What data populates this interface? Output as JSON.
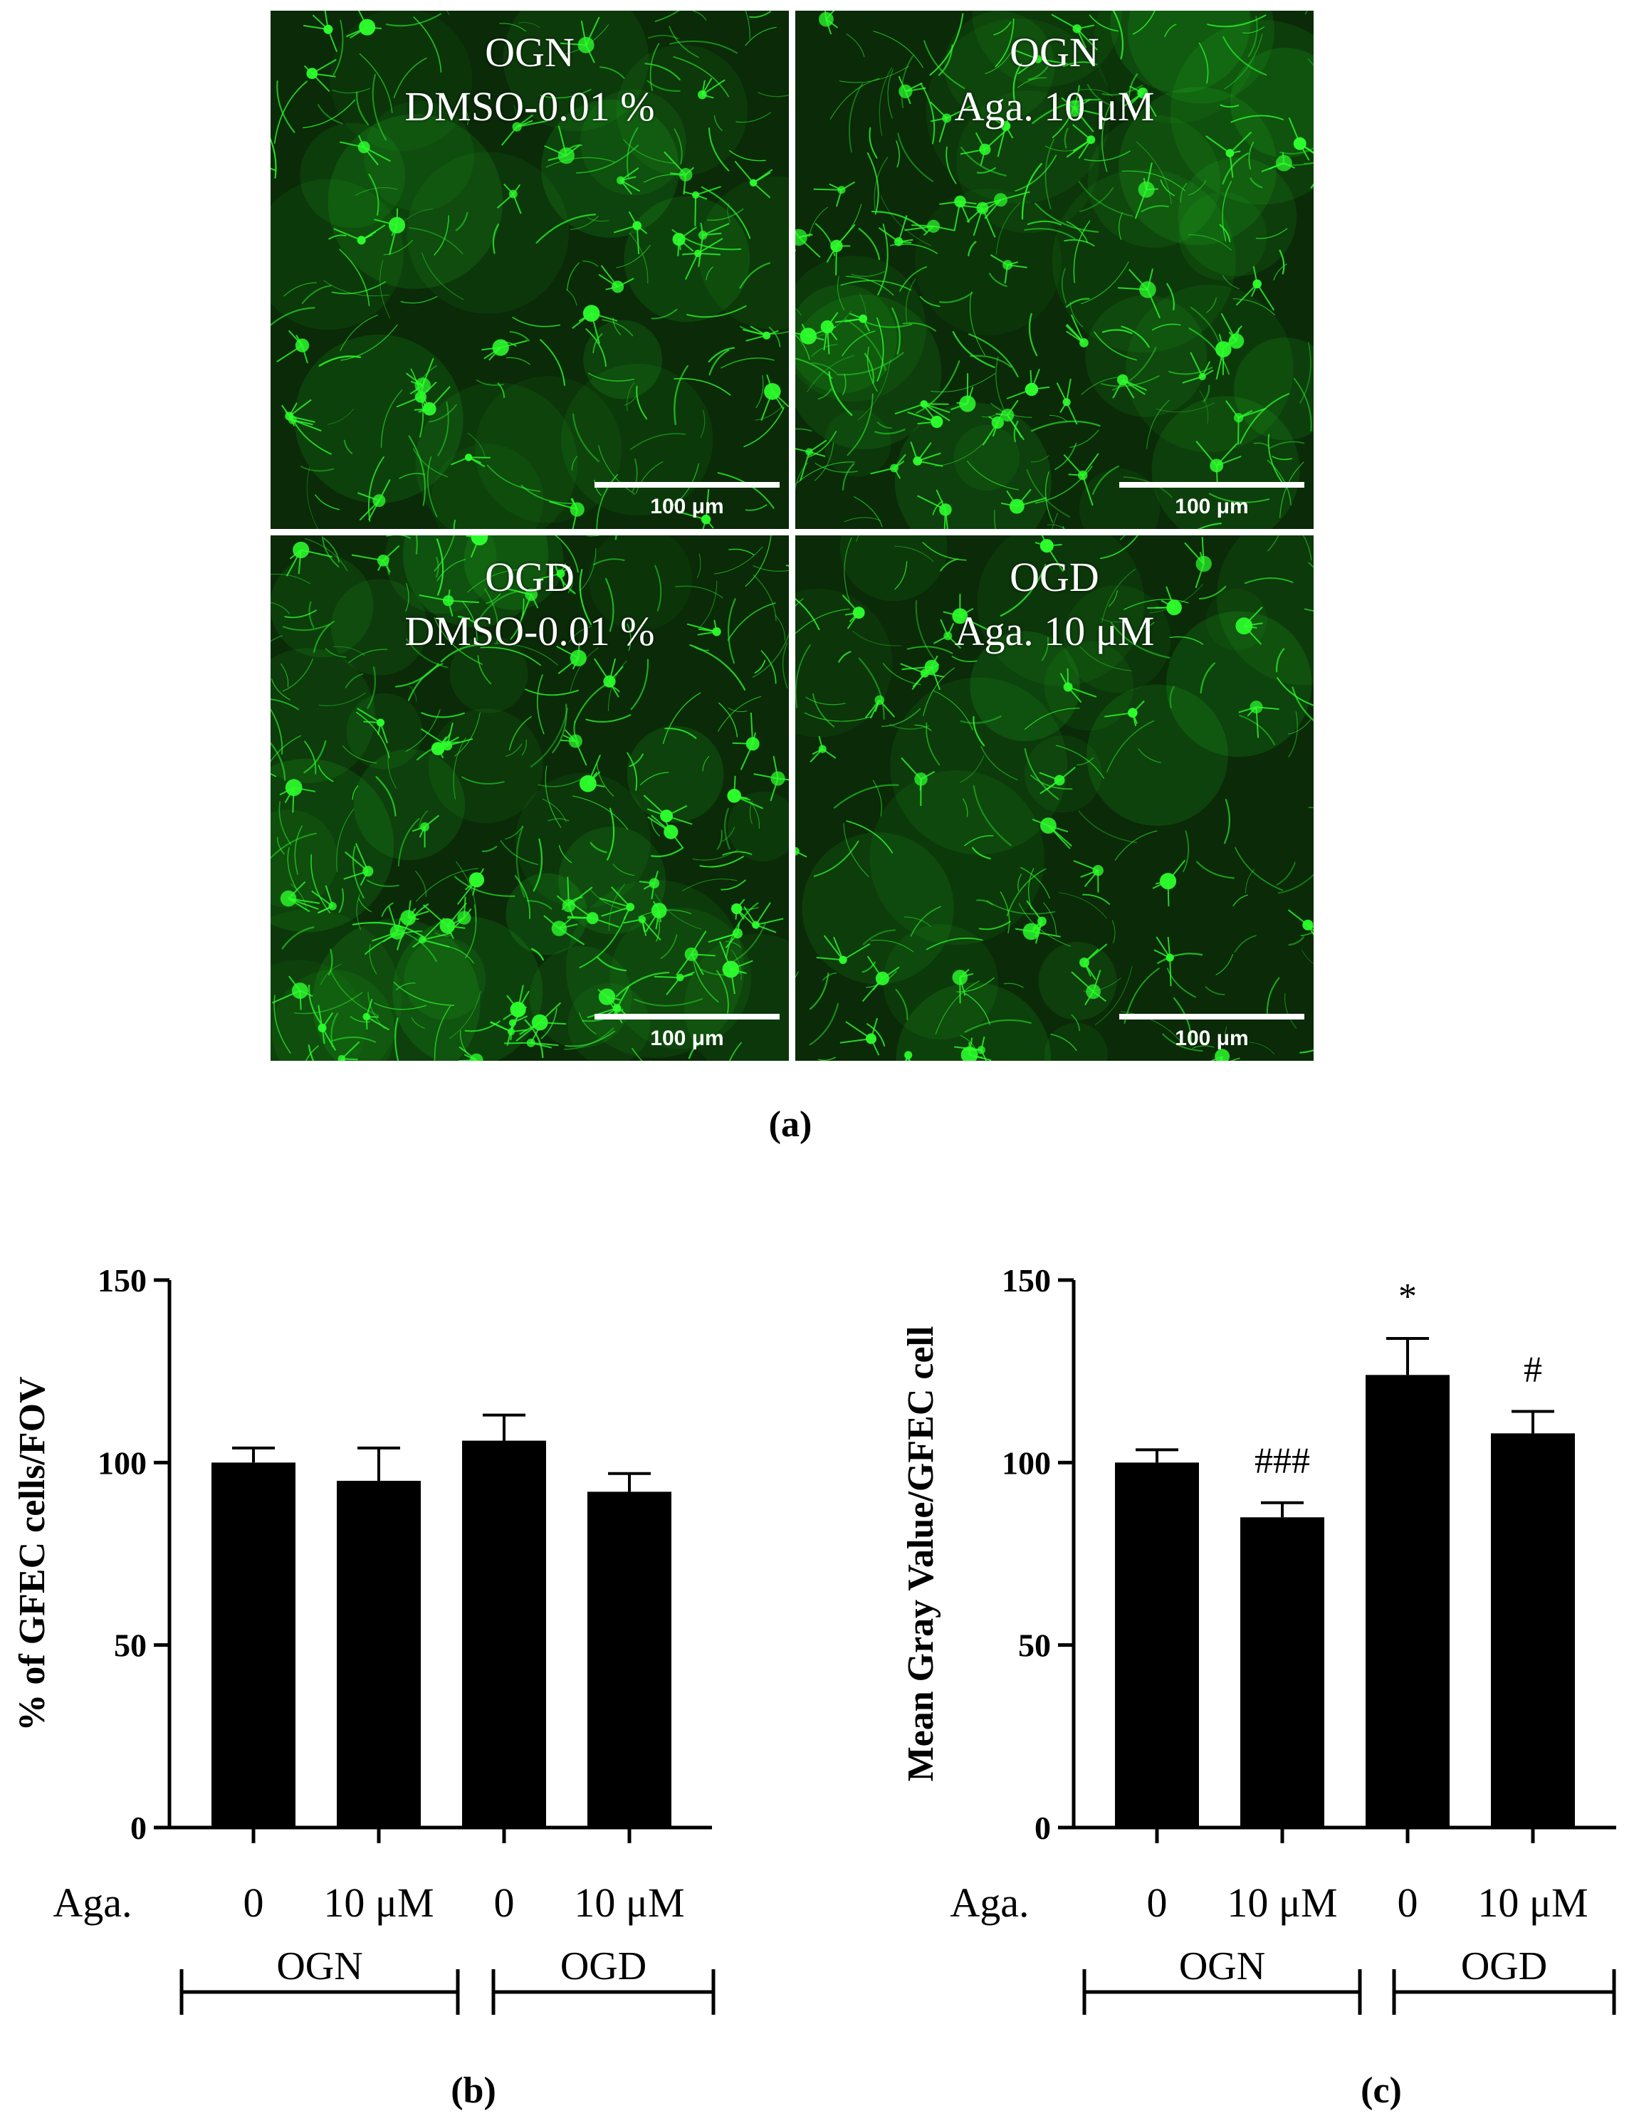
{
  "panel_a": {
    "tiles": [
      {
        "line1": "OGN",
        "line2": "DMSO-0.01 %",
        "scalebar": "100 μm"
      },
      {
        "line1": "OGN",
        "line2": "Aga. 10 μM",
        "scalebar": "100 μm"
      },
      {
        "line1": "OGD",
        "line2": "DMSO-0.01 %",
        "scalebar": "100 μm"
      },
      {
        "line1": "OGD",
        "line2": "Aga. 10 μM",
        "scalebar": "100 μm"
      }
    ],
    "caption": "(a)",
    "colors": {
      "background": "#0a2a08",
      "stain": "#2dff2d",
      "label": "#ffffff"
    }
  },
  "chart_data": [
    {
      "type": "bar",
      "panel": "(b)",
      "ylabel": "% of GFEC cells/FOV",
      "ylim": [
        0,
        150
      ],
      "yticks": [
        0,
        50,
        100,
        150
      ],
      "categories": [
        "0",
        "10 μM",
        "0",
        "10 μM"
      ],
      "row_label": "Aga.",
      "groups": [
        {
          "label": "OGN",
          "span": [
            0,
            1
          ]
        },
        {
          "label": "OGD",
          "span": [
            2,
            3
          ]
        }
      ],
      "values": [
        100,
        95,
        106,
        92
      ],
      "errors": [
        4,
        9,
        7,
        5
      ],
      "annotations": [
        "",
        "",
        "",
        ""
      ],
      "bar_color": "#000000"
    },
    {
      "type": "bar",
      "panel": "(c)",
      "ylabel": "Mean Gray Value/GFEC cell",
      "ylim": [
        0,
        150
      ],
      "yticks": [
        0,
        50,
        100,
        150
      ],
      "categories": [
        "0",
        "10 μM",
        "0",
        "10 μM"
      ],
      "row_label": "Aga.",
      "groups": [
        {
          "label": "OGN",
          "span": [
            0,
            1
          ]
        },
        {
          "label": "OGD",
          "span": [
            2,
            3
          ]
        }
      ],
      "values": [
        100,
        85,
        124,
        108
      ],
      "errors": [
        3.5,
        4,
        10,
        6
      ],
      "annotations": [
        "",
        "###",
        "*",
        "#"
      ],
      "bar_color": "#000000"
    }
  ]
}
